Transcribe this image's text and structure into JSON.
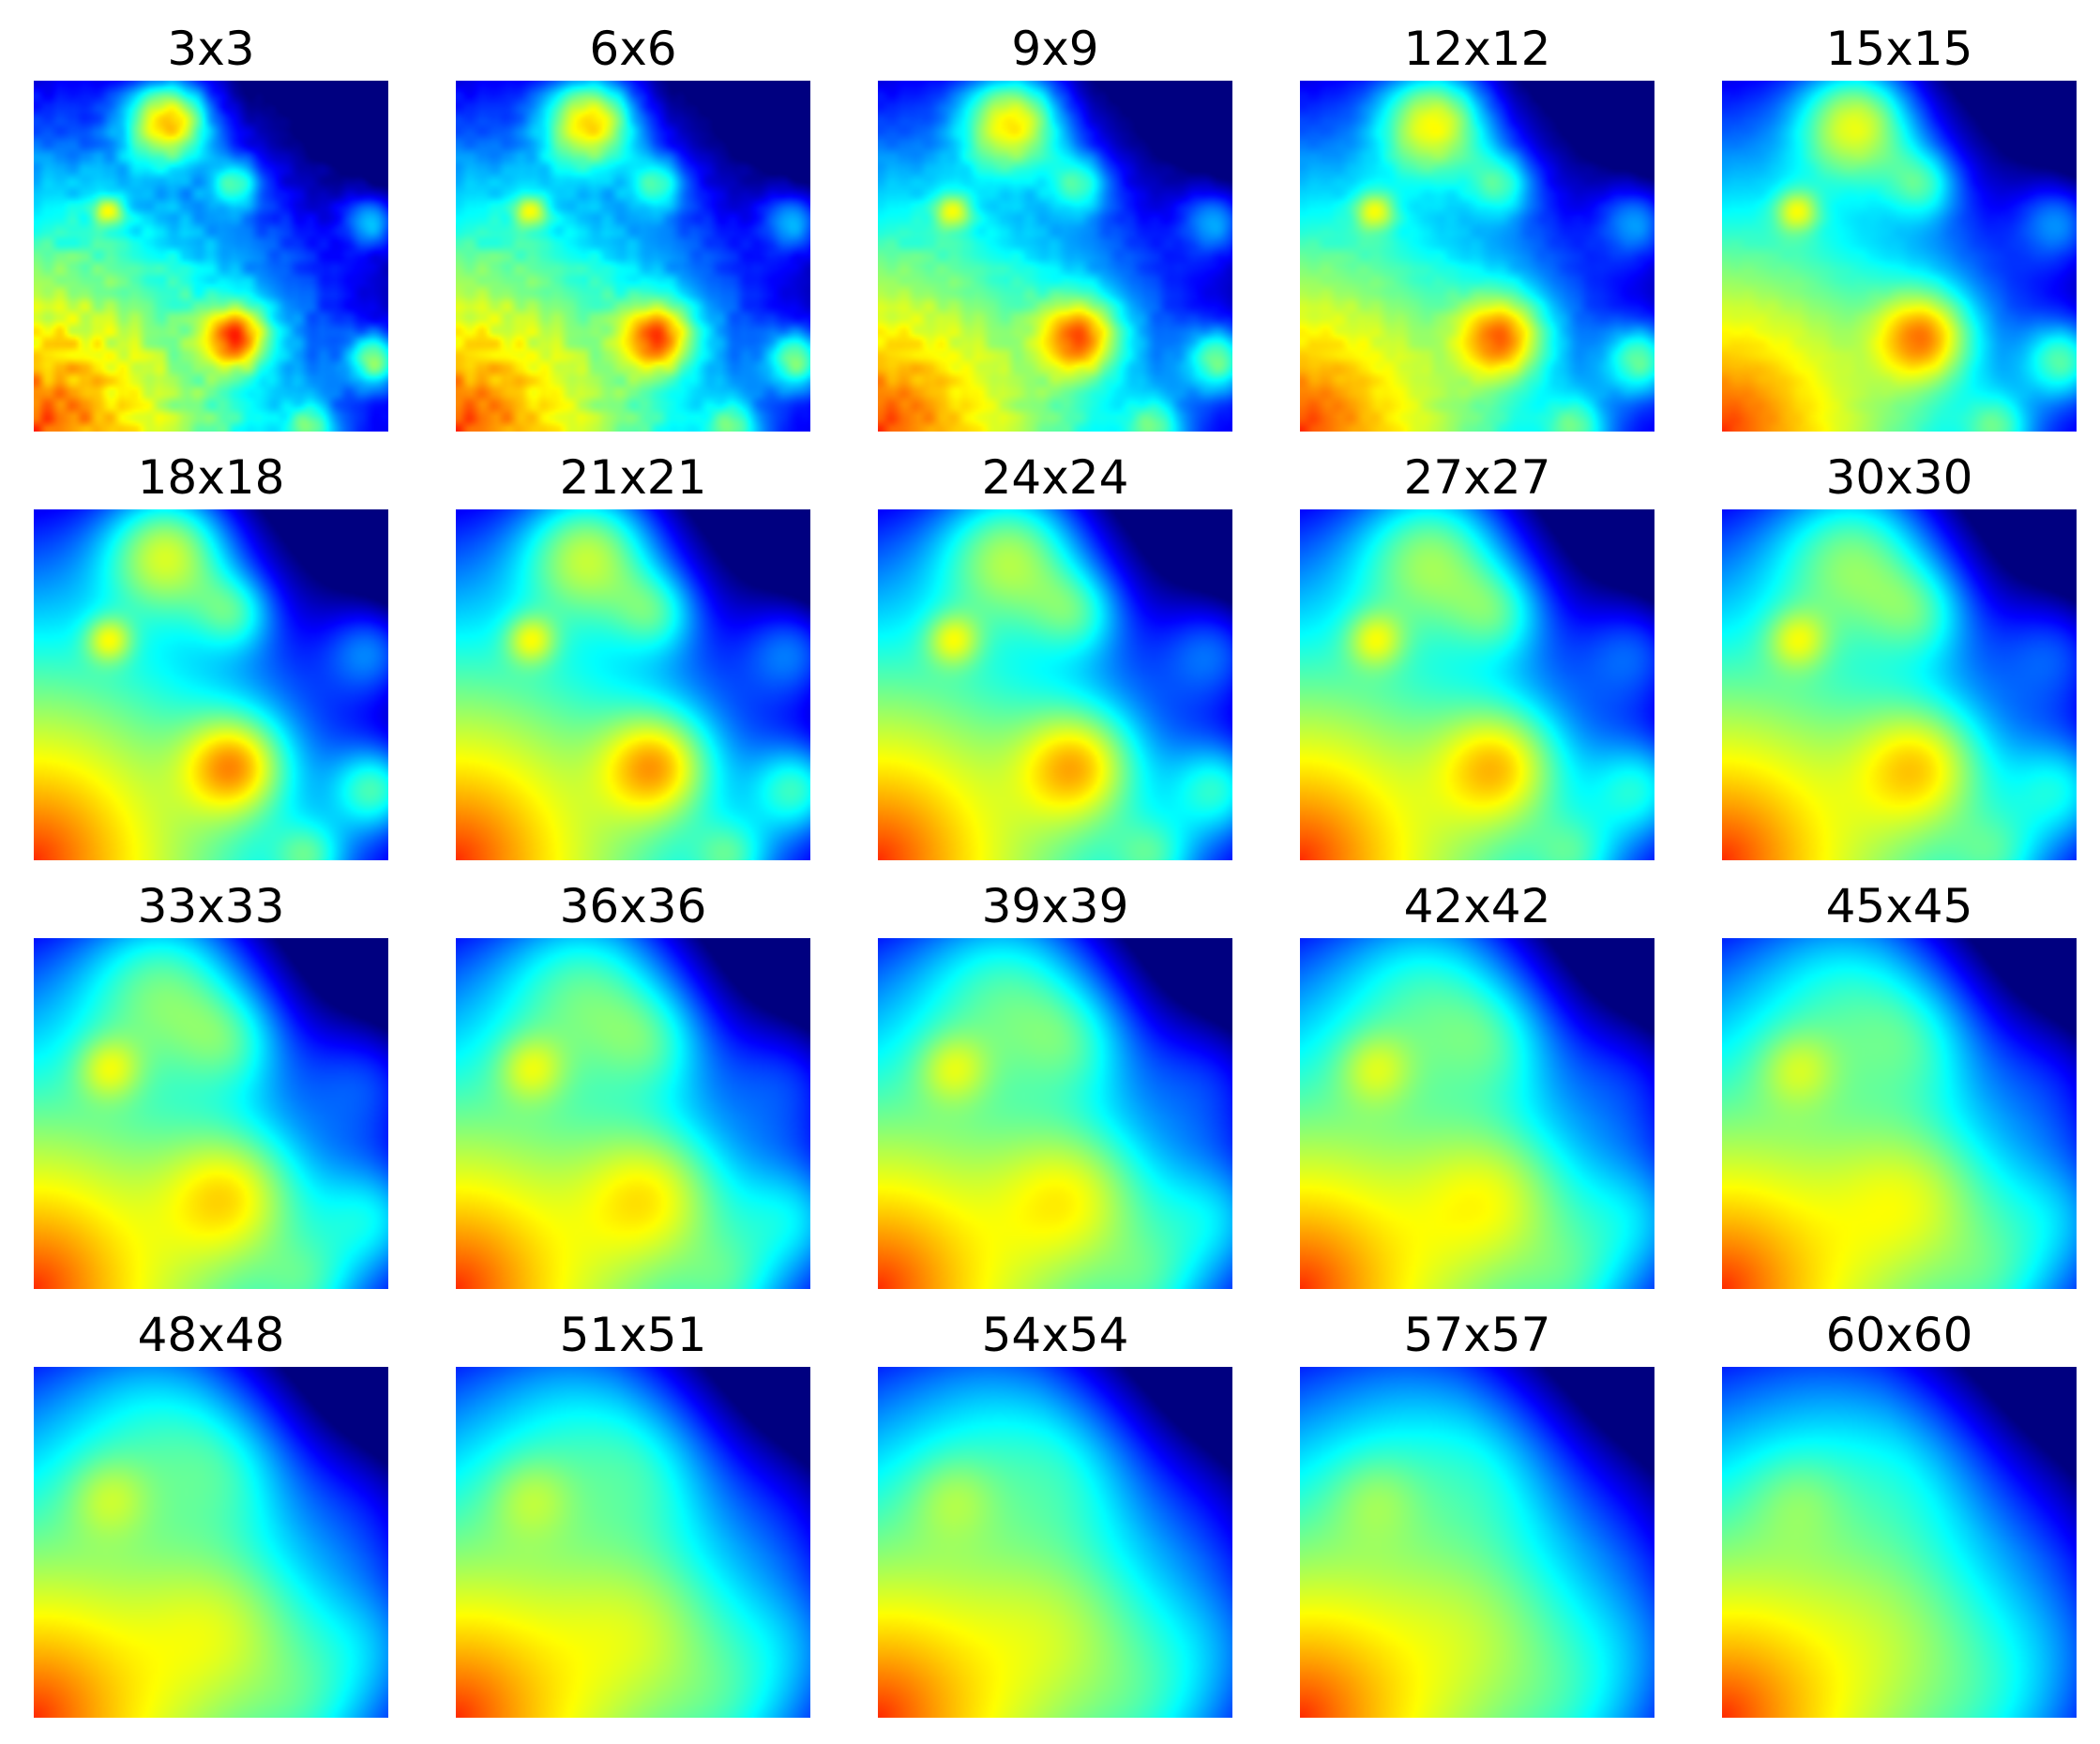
{
  "chart_data": {
    "type": "heatmap",
    "colormap": "jet",
    "grid": {
      "rows": 4,
      "columns": 5
    },
    "panels": [
      {
        "title": "3x3",
        "window_size": 3
      },
      {
        "title": "6x6",
        "window_size": 6
      },
      {
        "title": "9x9",
        "window_size": 9
      },
      {
        "title": "12x12",
        "window_size": 12
      },
      {
        "title": "15x15",
        "window_size": 15
      },
      {
        "title": "18x18",
        "window_size": 18
      },
      {
        "title": "21x21",
        "window_size": 21
      },
      {
        "title": "24x24",
        "window_size": 24
      },
      {
        "title": "27x27",
        "window_size": 27
      },
      {
        "title": "30x30",
        "window_size": 30
      },
      {
        "title": "33x33",
        "window_size": 33
      },
      {
        "title": "36x36",
        "window_size": 36
      },
      {
        "title": "39x39",
        "window_size": 39
      },
      {
        "title": "42x42",
        "window_size": 42
      },
      {
        "title": "45x45",
        "window_size": 45
      },
      {
        "title": "48x48",
        "window_size": 48
      },
      {
        "title": "51x51",
        "window_size": 51
      },
      {
        "title": "54x54",
        "window_size": 54
      },
      {
        "title": "57x57",
        "window_size": 57
      },
      {
        "title": "60x60",
        "window_size": 60
      }
    ],
    "axes_visible": false,
    "colorbar": false
  }
}
